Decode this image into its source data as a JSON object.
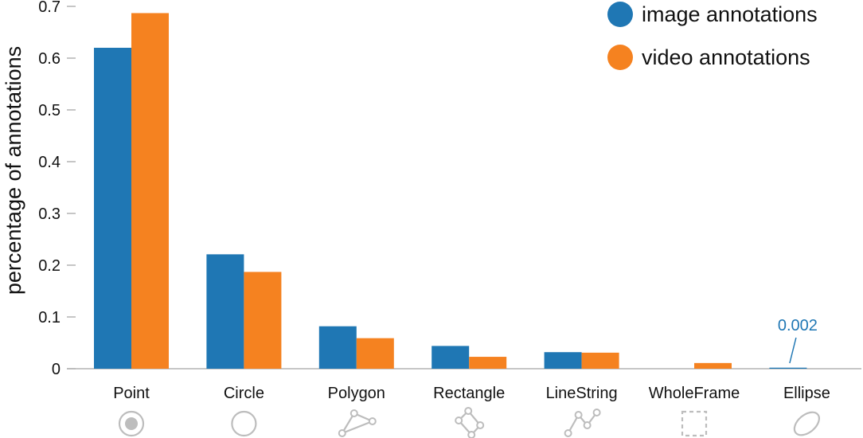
{
  "chart_data": {
    "type": "bar",
    "ylabel": "percentage of annotations",
    "ylim": [
      0,
      0.7
    ],
    "yticks": [
      "0",
      "0.1",
      "0.2",
      "0.3",
      "0.4",
      "0.5",
      "0.6",
      "0.7"
    ],
    "grid": false,
    "legend_position": "top-right",
    "categories": [
      "Point",
      "Circle",
      "Polygon",
      "Rectangle",
      "LineString",
      "WholeFrame",
      "Ellipse"
    ],
    "category_icons": [
      "point-icon",
      "circle-icon",
      "polygon-icon",
      "rectangle-icon",
      "linestring-icon",
      "wholeframe-icon",
      "ellipse-icon"
    ],
    "series": [
      {
        "name": "image annotations",
        "color": "#1f77b4",
        "values": [
          0.62,
          0.221,
          0.082,
          0.044,
          0.032,
          0.0,
          0.002
        ]
      },
      {
        "name": "video annotations",
        "color": "#f58220",
        "values": [
          0.687,
          0.187,
          0.059,
          0.023,
          0.031,
          0.011,
          0.0
        ]
      }
    ],
    "annotations": [
      {
        "text": "0.002",
        "category": "Ellipse",
        "series": "image annotations",
        "color": "#1f77b4"
      }
    ],
    "icon_color": "#bdbdbd",
    "axis_color": "#b3b3b3"
  }
}
